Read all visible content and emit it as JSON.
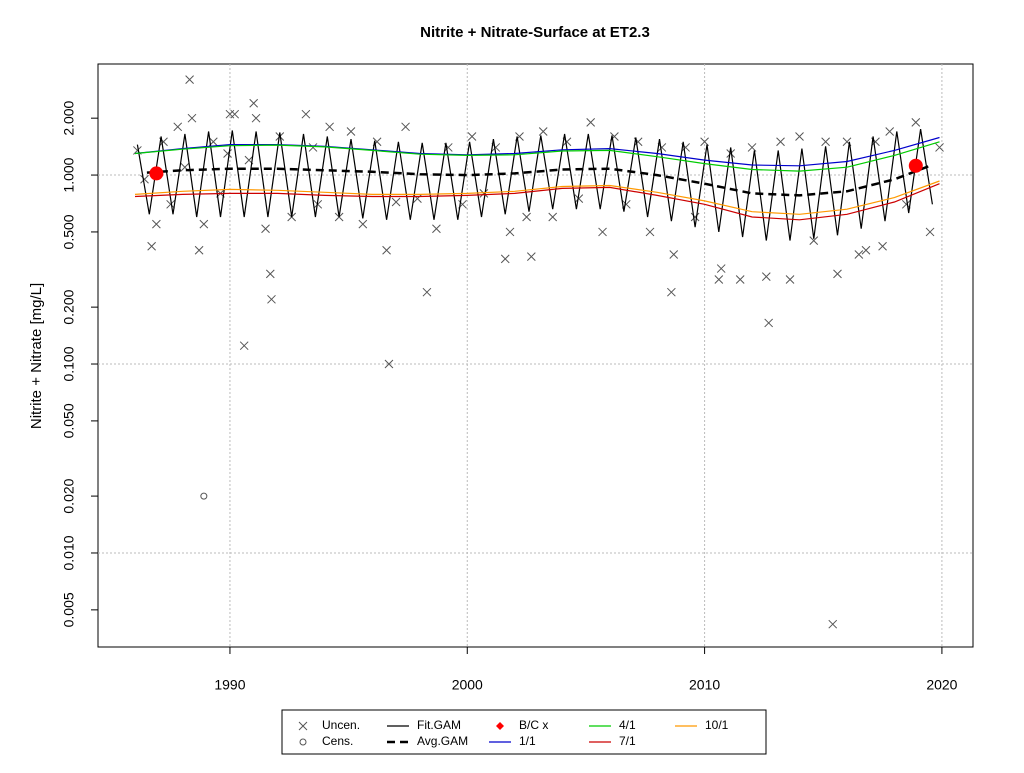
{
  "chart_data": {
    "type": "line",
    "title": "Nitrite + Nitrate-Surface at ET2.3",
    "y_label": "Nitrite + Nitrate [mg/L]",
    "log_y": true,
    "grid": true,
    "legend": "bottom",
    "xlim": [
      1984.44,
      2021.31
    ],
    "ylim": [
      0.00318,
      3.87
    ],
    "xticks": [
      1990,
      2000,
      2010,
      2020
    ],
    "yticks": [
      {
        "value": 0.005,
        "label": "0.005"
      },
      {
        "value": 0.01,
        "label": "0.010"
      },
      {
        "value": 0.02,
        "label": "0.020"
      },
      {
        "value": 0.05,
        "label": "0.050"
      },
      {
        "value": 0.1,
        "label": "0.100"
      },
      {
        "value": 0.2,
        "label": "0.200"
      },
      {
        "value": 0.5,
        "label": "0.500"
      },
      {
        "value": 1,
        "label": "1.000"
      },
      {
        "value": 2,
        "label": "2.000"
      }
    ],
    "ygrid": [
      0.01,
      0.1,
      1
    ],
    "series": [
      {
        "name": "Uncen.",
        "color": "#555555",
        "marker": "x",
        "x": [
          1986.1,
          1986.4,
          1986.7,
          1986.9,
          1987.2,
          1987.5,
          1987.8,
          1988.1,
          1988.3,
          1988.4,
          1988.7,
          1988.9,
          1989.3,
          1989.6,
          1989.9,
          1990.0,
          1990.2,
          1990.6,
          1990.8,
          1991.0,
          1991.1,
          1991.5,
          1991.7,
          1991.75,
          1992.1,
          1992.6,
          1993.2,
          1993.5,
          1993.7,
          1994.2,
          1994.6,
          1995.1,
          1995.6,
          1996.2,
          1996.6,
          1996.7,
          1997.0,
          1997.4,
          1997.9,
          1998.3,
          1998.7,
          1999.2,
          1999.8,
          2000.2,
          2000.7,
          2001.2,
          2001.6,
          2001.8,
          2002.2,
          2002.5,
          2002.7,
          2003.2,
          2003.6,
          2004.2,
          2004.7,
          2005.2,
          2005.7,
          2006.2,
          2006.7,
          2007.2,
          2007.7,
          2008.2,
          2008.6,
          2008.7,
          2009.2,
          2009.6,
          2010.0,
          2010.6,
          2010.7,
          2011.1,
          2011.5,
          2012.0,
          2012.6,
          2012.7,
          2013.2,
          2013.6,
          2014.0,
          2014.6,
          2015.1,
          2015.4,
          2015.6,
          2016.0,
          2016.5,
          2016.8,
          2017.2,
          2017.5,
          2017.8,
          2018.5,
          2018.9,
          2019.5,
          2019.9
        ],
        "values": [
          1.35,
          0.95,
          0.42,
          0.55,
          1.5,
          0.7,
          1.8,
          1.1,
          3.2,
          2.0,
          0.4,
          0.55,
          1.5,
          0.8,
          1.3,
          2.1,
          2.1,
          0.125,
          1.2,
          2.4,
          2.0,
          0.52,
          0.3,
          0.22,
          1.6,
          0.6,
          2.1,
          1.4,
          0.7,
          1.8,
          0.6,
          1.7,
          0.55,
          1.5,
          0.4,
          0.1,
          0.72,
          1.8,
          0.75,
          0.24,
          0.52,
          1.4,
          0.7,
          1.6,
          0.8,
          1.4,
          0.36,
          0.5,
          1.6,
          0.6,
          0.37,
          1.7,
          0.6,
          1.5,
          0.75,
          1.9,
          0.5,
          1.6,
          0.7,
          1.5,
          0.5,
          1.4,
          0.24,
          0.38,
          1.4,
          0.6,
          1.5,
          0.28,
          0.32,
          1.3,
          0.28,
          1.4,
          0.29,
          0.165,
          1.5,
          0.28,
          1.6,
          0.45,
          1.5,
          0.0042,
          0.3,
          1.5,
          0.38,
          0.4,
          1.5,
          0.42,
          1.7,
          0.7,
          1.9,
          0.5,
          1.4
        ]
      },
      {
        "name": "Cens.",
        "color": "#555555",
        "marker": "circle",
        "x": [
          1988.9
        ],
        "values": [
          0.02
        ]
      },
      {
        "name": "Fit.GAM",
        "color": "#000000",
        "line": "solid",
        "x": [
          1986.1,
          1986.6,
          1987.1,
          1987.6,
          1988.1,
          1988.6,
          1989.1,
          1989.6,
          1990.1,
          1990.6,
          1991.1,
          1991.6,
          1992.1,
          1992.6,
          1993.1,
          1993.6,
          1994.1,
          1994.6,
          1995.1,
          1995.6,
          1996.1,
          1996.6,
          1997.1,
          1997.6,
          1998.1,
          1998.6,
          1999.1,
          1999.6,
          2000.1,
          2000.6,
          2001.1,
          2001.6,
          2002.1,
          2002.6,
          2003.1,
          2003.6,
          2004.1,
          2004.6,
          2005.1,
          2005.6,
          2006.1,
          2006.6,
          2007.1,
          2007.6,
          2008.1,
          2008.6,
          2009.1,
          2009.6,
          2010.1,
          2010.6,
          2011.1,
          2011.6,
          2012.1,
          2012.6,
          2013.1,
          2013.6,
          2014.1,
          2014.6,
          2015.1,
          2015.6,
          2016.1,
          2016.6,
          2017.1,
          2017.6,
          2018.1,
          2018.6,
          2019.1,
          2019.6
        ],
        "values": [
          1.45,
          0.62,
          1.6,
          0.62,
          1.65,
          0.6,
          1.7,
          0.6,
          1.72,
          0.6,
          1.7,
          0.6,
          1.68,
          0.6,
          1.65,
          0.6,
          1.6,
          0.6,
          1.55,
          0.59,
          1.52,
          0.58,
          1.5,
          0.58,
          1.48,
          0.58,
          1.48,
          0.58,
          1.5,
          0.6,
          1.55,
          0.62,
          1.6,
          0.64,
          1.62,
          0.66,
          1.65,
          0.66,
          1.65,
          0.66,
          1.62,
          0.64,
          1.58,
          0.6,
          1.55,
          0.57,
          1.5,
          0.53,
          1.45,
          0.5,
          1.4,
          0.47,
          1.35,
          0.45,
          1.35,
          0.45,
          1.38,
          0.46,
          1.42,
          0.48,
          1.5,
          0.52,
          1.6,
          0.57,
          1.7,
          0.63,
          1.75,
          0.7
        ]
      },
      {
        "name": "Avg.GAM",
        "color": "#000000",
        "line": "dashed",
        "x": [
          1986.5,
          1988,
          1990,
          1992,
          1994,
          1996,
          1998,
          2000,
          2002,
          2004,
          2006,
          2008,
          2010,
          2012,
          2014,
          2016,
          2018,
          2019.5
        ],
        "values": [
          1.03,
          1.06,
          1.08,
          1.08,
          1.06,
          1.04,
          1.01,
          1.0,
          1.02,
          1.07,
          1.08,
          1.0,
          0.9,
          0.8,
          0.78,
          0.82,
          0.95,
          1.12
        ]
      },
      {
        "name": "B/C x",
        "color": "#ff0000",
        "marker": "dot",
        "x": [
          1986.9,
          2018.9
        ],
        "values": [
          1.02,
          1.12
        ]
      },
      {
        "name": "1/1",
        "color": "#0000cc",
        "line": "solid",
        "x": [
          1986,
          1988,
          1990,
          1992,
          1994,
          1996,
          1998,
          2000,
          2002,
          2004,
          2006,
          2008,
          2010,
          2012,
          2014,
          2016,
          2018,
          2019.9
        ],
        "values": [
          1.3,
          1.38,
          1.45,
          1.45,
          1.42,
          1.36,
          1.3,
          1.28,
          1.3,
          1.36,
          1.38,
          1.3,
          1.2,
          1.13,
          1.12,
          1.18,
          1.35,
          1.58
        ]
      },
      {
        "name": "4/1",
        "color": "#00cc00",
        "line": "solid",
        "x": [
          1986,
          1988,
          1990,
          1992,
          1994,
          1996,
          1998,
          2000,
          2002,
          2004,
          2006,
          2008,
          2010,
          2012,
          2014,
          2016,
          2018,
          2019.9
        ],
        "values": [
          1.3,
          1.37,
          1.43,
          1.44,
          1.41,
          1.35,
          1.29,
          1.27,
          1.28,
          1.34,
          1.35,
          1.25,
          1.15,
          1.07,
          1.05,
          1.1,
          1.27,
          1.5
        ]
      },
      {
        "name": "7/1",
        "color": "#cc0000",
        "line": "solid",
        "x": [
          1986,
          1988,
          1990,
          1992,
          1994,
          1996,
          1998,
          2000,
          2002,
          2004,
          2006,
          2008,
          2010,
          2012,
          2014,
          2016,
          2018,
          2019.9
        ],
        "values": [
          0.77,
          0.79,
          0.8,
          0.8,
          0.78,
          0.77,
          0.77,
          0.78,
          0.8,
          0.85,
          0.86,
          0.78,
          0.7,
          0.6,
          0.58,
          0.62,
          0.72,
          0.9
        ]
      },
      {
        "name": "10/1",
        "color": "#ff9900",
        "line": "solid",
        "x": [
          1986,
          1988,
          1990,
          1992,
          1994,
          1996,
          1998,
          2000,
          2002,
          2004,
          2006,
          2008,
          2010,
          2012,
          2014,
          2016,
          2018,
          2019.9
        ],
        "values": [
          0.79,
          0.82,
          0.84,
          0.83,
          0.81,
          0.79,
          0.79,
          0.8,
          0.82,
          0.87,
          0.88,
          0.81,
          0.73,
          0.64,
          0.62,
          0.66,
          0.76,
          0.93
        ]
      }
    ]
  }
}
